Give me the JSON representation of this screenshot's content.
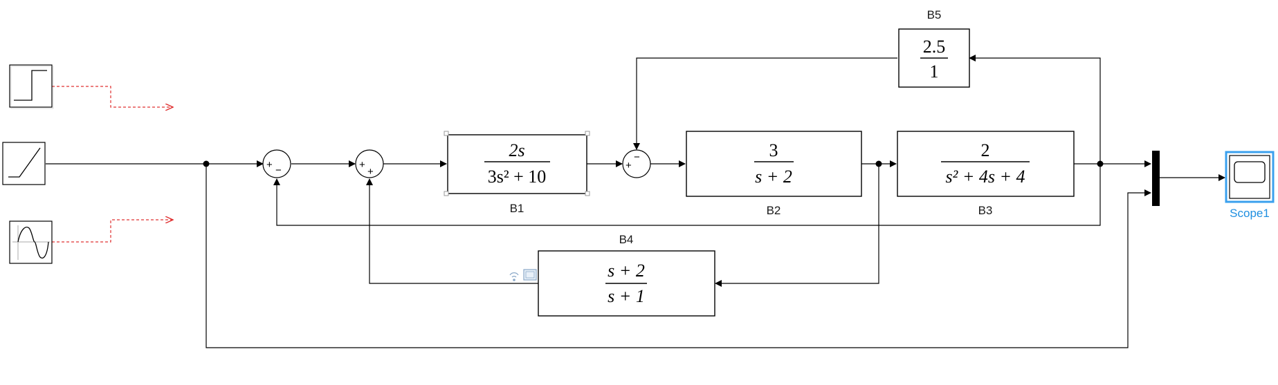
{
  "blocks": {
    "B1": {
      "label": "B1",
      "num": "2s",
      "den": "3s² + 10"
    },
    "B2": {
      "label": "B2",
      "num": "3",
      "den": "s + 2"
    },
    "B3": {
      "label": "B3",
      "num": "2",
      "den": "s² + 4s + 4"
    },
    "B4": {
      "label": "B4",
      "num": "s + 2",
      "den": "s + 1"
    },
    "B5": {
      "label": "B5",
      "num": "2.5",
      "den": "1"
    }
  },
  "sum1": {
    "top": "+",
    "bottom": "−"
  },
  "sum2": {
    "top": "+",
    "bottom": "+"
  },
  "sum3": {
    "top": "−",
    "left": "+"
  },
  "scope": {
    "label": "Scope1",
    "highlight_color": "#1f8fe0"
  },
  "colors": {
    "line": "#000000",
    "unconnected": "#e03030"
  },
  "sources": [
    "step-icon",
    "ramp-icon",
    "sine-wave-icon"
  ]
}
